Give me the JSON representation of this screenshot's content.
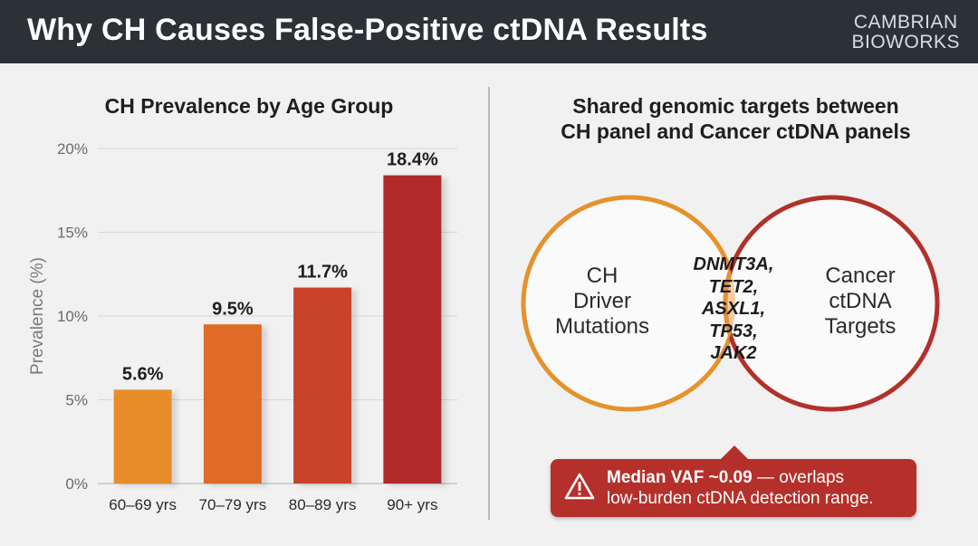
{
  "header": {
    "title": "Why CH Causes False-Positive ctDNA Results",
    "brand_line1": "CAMBRIAN",
    "brand_line2": "BIOWORKS"
  },
  "chart_data": {
    "type": "bar",
    "title": "CH Prevalence by Age Group",
    "ylabel": "Prevalence (%)",
    "xlabel": "",
    "categories": [
      "60–69 yrs",
      "70–79 yrs",
      "80–89 yrs",
      "90+ yrs"
    ],
    "values": [
      5.6,
      9.5,
      11.7,
      18.4
    ],
    "value_labels": [
      "5.6%",
      "9.5%",
      "11.7%",
      "18.4%"
    ],
    "ylim": [
      0,
      20
    ],
    "yticks": [
      0,
      5,
      10,
      15,
      20
    ],
    "ytick_labels": [
      "0%",
      "5%",
      "10%",
      "15%",
      "20%"
    ],
    "grid": true,
    "bar_colors": [
      "#e88c2a",
      "#e06a25",
      "#c9432a",
      "#b02a2a"
    ]
  },
  "venn": {
    "title_line1": "Shared genomic targets between",
    "title_line2": "CH panel and Cancer ctDNA panels",
    "left_label": [
      "CH",
      "Driver",
      "Mutations"
    ],
    "right_label": [
      "Cancer",
      "ctDNA",
      "Targets"
    ],
    "overlap_genes": [
      "DNMT3A,",
      "TET2,",
      "ASXL1,",
      "TP53,",
      "JAK2"
    ],
    "colors": {
      "left": "#e5922d",
      "right": "#b3302b",
      "overlap": "#f8c9a4"
    }
  },
  "callout": {
    "bold_text": "Median VAF ~0.09",
    "rest_line1": " — overlaps",
    "line2": "low-burden ctDNA detection range.",
    "icon": "warning-icon"
  }
}
